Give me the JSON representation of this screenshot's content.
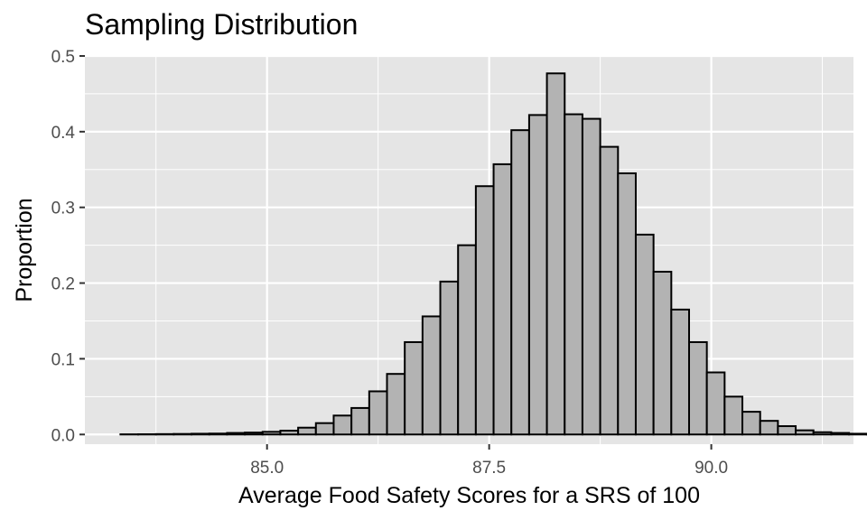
{
  "chart_data": {
    "type": "bar",
    "title": "Sampling Distribution",
    "xlabel": "Average Food Safety Scores for a SRS of 100",
    "ylabel": "Proportion",
    "xlim": [
      82.95,
      91.6
    ],
    "ylim": [
      -0.0128,
      0.5
    ],
    "x_ticks": [
      {
        "value": 85.0,
        "label": "85.0"
      },
      {
        "value": 87.5,
        "label": "87.5"
      },
      {
        "value": 90.0,
        "label": "90.0"
      }
    ],
    "y_ticks": [
      {
        "value": 0.0,
        "label": "0.0"
      },
      {
        "value": 0.1,
        "label": "0.1"
      },
      {
        "value": 0.2,
        "label": "0.2"
      },
      {
        "value": 0.3,
        "label": "0.3"
      },
      {
        "value": 0.4,
        "label": "0.4"
      },
      {
        "value": 0.5,
        "label": "0.5"
      }
    ],
    "x_minor_ticks": [
      83.75,
      86.25,
      88.75,
      91.25
    ],
    "y_minor_ticks": [
      0.05,
      0.15,
      0.25,
      0.35,
      0.45
    ],
    "bin_start": 83.35,
    "bin_width": 0.2,
    "values": [
      0.0002,
      0.0003,
      0.0005,
      0.0007,
      0.001,
      0.0012,
      0.002,
      0.0025,
      0.0035,
      0.005,
      0.009,
      0.015,
      0.025,
      0.035,
      0.057,
      0.08,
      0.122,
      0.156,
      0.202,
      0.25,
      0.328,
      0.357,
      0.402,
      0.422,
      0.477,
      0.423,
      0.417,
      0.38,
      0.345,
      0.264,
      0.215,
      0.165,
      0.122,
      0.082,
      0.05,
      0.03,
      0.018,
      0.011,
      0.0055,
      0.003,
      0.002,
      0.001,
      0.0005,
      0.0002,
      0.0002
    ],
    "grid": true,
    "colors": {
      "panel": "#e5e5e5",
      "grid": "#ffffff",
      "bar_fill": "#b3b3b3",
      "bar_stroke": "#000000"
    }
  }
}
